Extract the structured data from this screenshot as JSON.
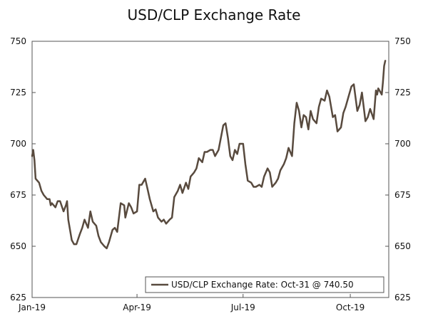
{
  "chart_data": {
    "type": "line",
    "title": "USD/CLP Exchange Rate",
    "xlabel": "",
    "ylabel": "",
    "ylim": [
      625,
      750
    ],
    "yticks": [
      625,
      650,
      675,
      700,
      725,
      750
    ],
    "xlim": [
      "2019-01-01",
      "2019-11-03"
    ],
    "xticks": [
      {
        "date": "2019-01-01",
        "label": "Jan-19"
      },
      {
        "date": "2019-04-01",
        "label": "Apr-19"
      },
      {
        "date": "2019-07-01",
        "label": "Jul-19"
      },
      {
        "date": "2019-10-01",
        "label": "Oct-19"
      }
    ],
    "grid": false,
    "legend": {
      "position": "bottom-right",
      "label": "USD/CLP Exchange Rate: Oct-31 @ 740.50"
    },
    "line_color": "#584a3e",
    "series": [
      {
        "name": "USD/CLP Exchange Rate: Oct-31 @ 740.50",
        "points": [
          [
            "2019-01-01",
            694
          ],
          [
            "2019-01-02",
            697
          ],
          [
            "2019-01-03",
            692
          ],
          [
            "2019-01-04",
            683
          ],
          [
            "2019-01-07",
            681
          ],
          [
            "2019-01-09",
            677
          ],
          [
            "2019-01-11",
            675
          ],
          [
            "2019-01-14",
            673
          ],
          [
            "2019-01-16",
            673
          ],
          [
            "2019-01-17",
            670
          ],
          [
            "2019-01-18",
            671
          ],
          [
            "2019-01-21",
            669
          ],
          [
            "2019-01-23",
            672
          ],
          [
            "2019-01-25",
            672
          ],
          [
            "2019-01-28",
            667
          ],
          [
            "2019-01-30",
            670
          ],
          [
            "2019-01-31",
            672
          ],
          [
            "2019-02-01",
            663
          ],
          [
            "2019-02-04",
            653
          ],
          [
            "2019-02-06",
            651
          ],
          [
            "2019-02-08",
            651
          ],
          [
            "2019-02-11",
            656
          ],
          [
            "2019-02-13",
            659
          ],
          [
            "2019-02-15",
            663
          ],
          [
            "2019-02-18",
            659
          ],
          [
            "2019-02-20",
            667
          ],
          [
            "2019-02-22",
            662
          ],
          [
            "2019-02-25",
            660
          ],
          [
            "2019-02-27",
            655
          ],
          [
            "2019-03-01",
            652
          ],
          [
            "2019-03-04",
            650
          ],
          [
            "2019-03-06",
            649
          ],
          [
            "2019-03-08",
            652
          ],
          [
            "2019-03-11",
            658
          ],
          [
            "2019-03-13",
            659
          ],
          [
            "2019-03-15",
            657
          ],
          [
            "2019-03-18",
            671
          ],
          [
            "2019-03-21",
            670
          ],
          [
            "2019-03-22",
            664
          ],
          [
            "2019-03-25",
            671
          ],
          [
            "2019-03-27",
            669
          ],
          [
            "2019-03-29",
            666
          ],
          [
            "2019-04-01",
            667
          ],
          [
            "2019-04-03",
            680
          ],
          [
            "2019-04-05",
            680
          ],
          [
            "2019-04-08",
            683
          ],
          [
            "2019-04-10",
            678
          ],
          [
            "2019-04-12",
            673
          ],
          [
            "2019-04-15",
            667
          ],
          [
            "2019-04-17",
            668
          ],
          [
            "2019-04-19",
            664
          ],
          [
            "2019-04-22",
            662
          ],
          [
            "2019-04-24",
            663
          ],
          [
            "2019-04-26",
            661
          ],
          [
            "2019-04-29",
            663
          ],
          [
            "2019-05-01",
            664
          ],
          [
            "2019-05-03",
            674
          ],
          [
            "2019-05-06",
            677
          ],
          [
            "2019-05-08",
            680
          ],
          [
            "2019-05-10",
            676
          ],
          [
            "2019-05-13",
            681
          ],
          [
            "2019-05-15",
            678
          ],
          [
            "2019-05-17",
            684
          ],
          [
            "2019-05-20",
            686
          ],
          [
            "2019-05-22",
            688
          ],
          [
            "2019-05-24",
            693
          ],
          [
            "2019-05-27",
            691
          ],
          [
            "2019-05-29",
            696
          ],
          [
            "2019-05-31",
            696
          ],
          [
            "2019-06-03",
            697
          ],
          [
            "2019-06-05",
            697
          ],
          [
            "2019-06-07",
            694
          ],
          [
            "2019-06-10",
            697
          ],
          [
            "2019-06-12",
            703
          ],
          [
            "2019-06-14",
            709
          ],
          [
            "2019-06-16",
            710
          ],
          [
            "2019-06-18",
            703
          ],
          [
            "2019-06-20",
            694
          ],
          [
            "2019-06-22",
            692
          ],
          [
            "2019-06-24",
            697
          ],
          [
            "2019-06-26",
            695
          ],
          [
            "2019-06-28",
            700
          ],
          [
            "2019-07-01",
            700
          ],
          [
            "2019-07-03",
            690
          ],
          [
            "2019-07-05",
            682
          ],
          [
            "2019-07-08",
            681
          ],
          [
            "2019-07-10",
            679
          ],
          [
            "2019-07-12",
            679
          ],
          [
            "2019-07-15",
            680
          ],
          [
            "2019-07-17",
            679
          ],
          [
            "2019-07-19",
            684
          ],
          [
            "2019-07-22",
            688
          ],
          [
            "2019-07-24",
            686
          ],
          [
            "2019-07-26",
            679
          ],
          [
            "2019-07-29",
            681
          ],
          [
            "2019-07-31",
            683
          ],
          [
            "2019-08-02",
            687
          ],
          [
            "2019-08-05",
            690
          ],
          [
            "2019-08-07",
            693
          ],
          [
            "2019-08-09",
            698
          ],
          [
            "2019-08-12",
            694
          ],
          [
            "2019-08-14",
            710
          ],
          [
            "2019-08-16",
            720
          ],
          [
            "2019-08-18",
            716
          ],
          [
            "2019-08-20",
            708
          ],
          [
            "2019-08-22",
            714
          ],
          [
            "2019-08-24",
            713
          ],
          [
            "2019-08-26",
            707
          ],
          [
            "2019-08-28",
            716
          ],
          [
            "2019-08-30",
            712
          ],
          [
            "2019-09-02",
            710
          ],
          [
            "2019-09-04",
            718
          ],
          [
            "2019-09-06",
            722
          ],
          [
            "2019-09-09",
            721
          ],
          [
            "2019-09-11",
            726
          ],
          [
            "2019-09-13",
            723
          ],
          [
            "2019-09-16",
            713
          ],
          [
            "2019-09-18",
            714
          ],
          [
            "2019-09-20",
            706
          ],
          [
            "2019-09-23",
            708
          ],
          [
            "2019-09-25",
            715
          ],
          [
            "2019-09-27",
            718
          ],
          [
            "2019-09-30",
            724
          ],
          [
            "2019-10-02",
            728
          ],
          [
            "2019-10-04",
            729
          ],
          [
            "2019-10-07",
            716
          ],
          [
            "2019-10-09",
            719
          ],
          [
            "2019-10-11",
            725
          ],
          [
            "2019-10-14",
            711
          ],
          [
            "2019-10-16",
            713
          ],
          [
            "2019-10-18",
            717
          ],
          [
            "2019-10-21",
            712
          ],
          [
            "2019-10-23",
            726
          ],
          [
            "2019-10-24",
            724
          ],
          [
            "2019-10-25",
            727
          ],
          [
            "2019-10-28",
            724
          ],
          [
            "2019-10-29",
            730
          ],
          [
            "2019-10-30",
            738
          ],
          [
            "2019-10-31",
            740.5
          ]
        ]
      }
    ]
  }
}
